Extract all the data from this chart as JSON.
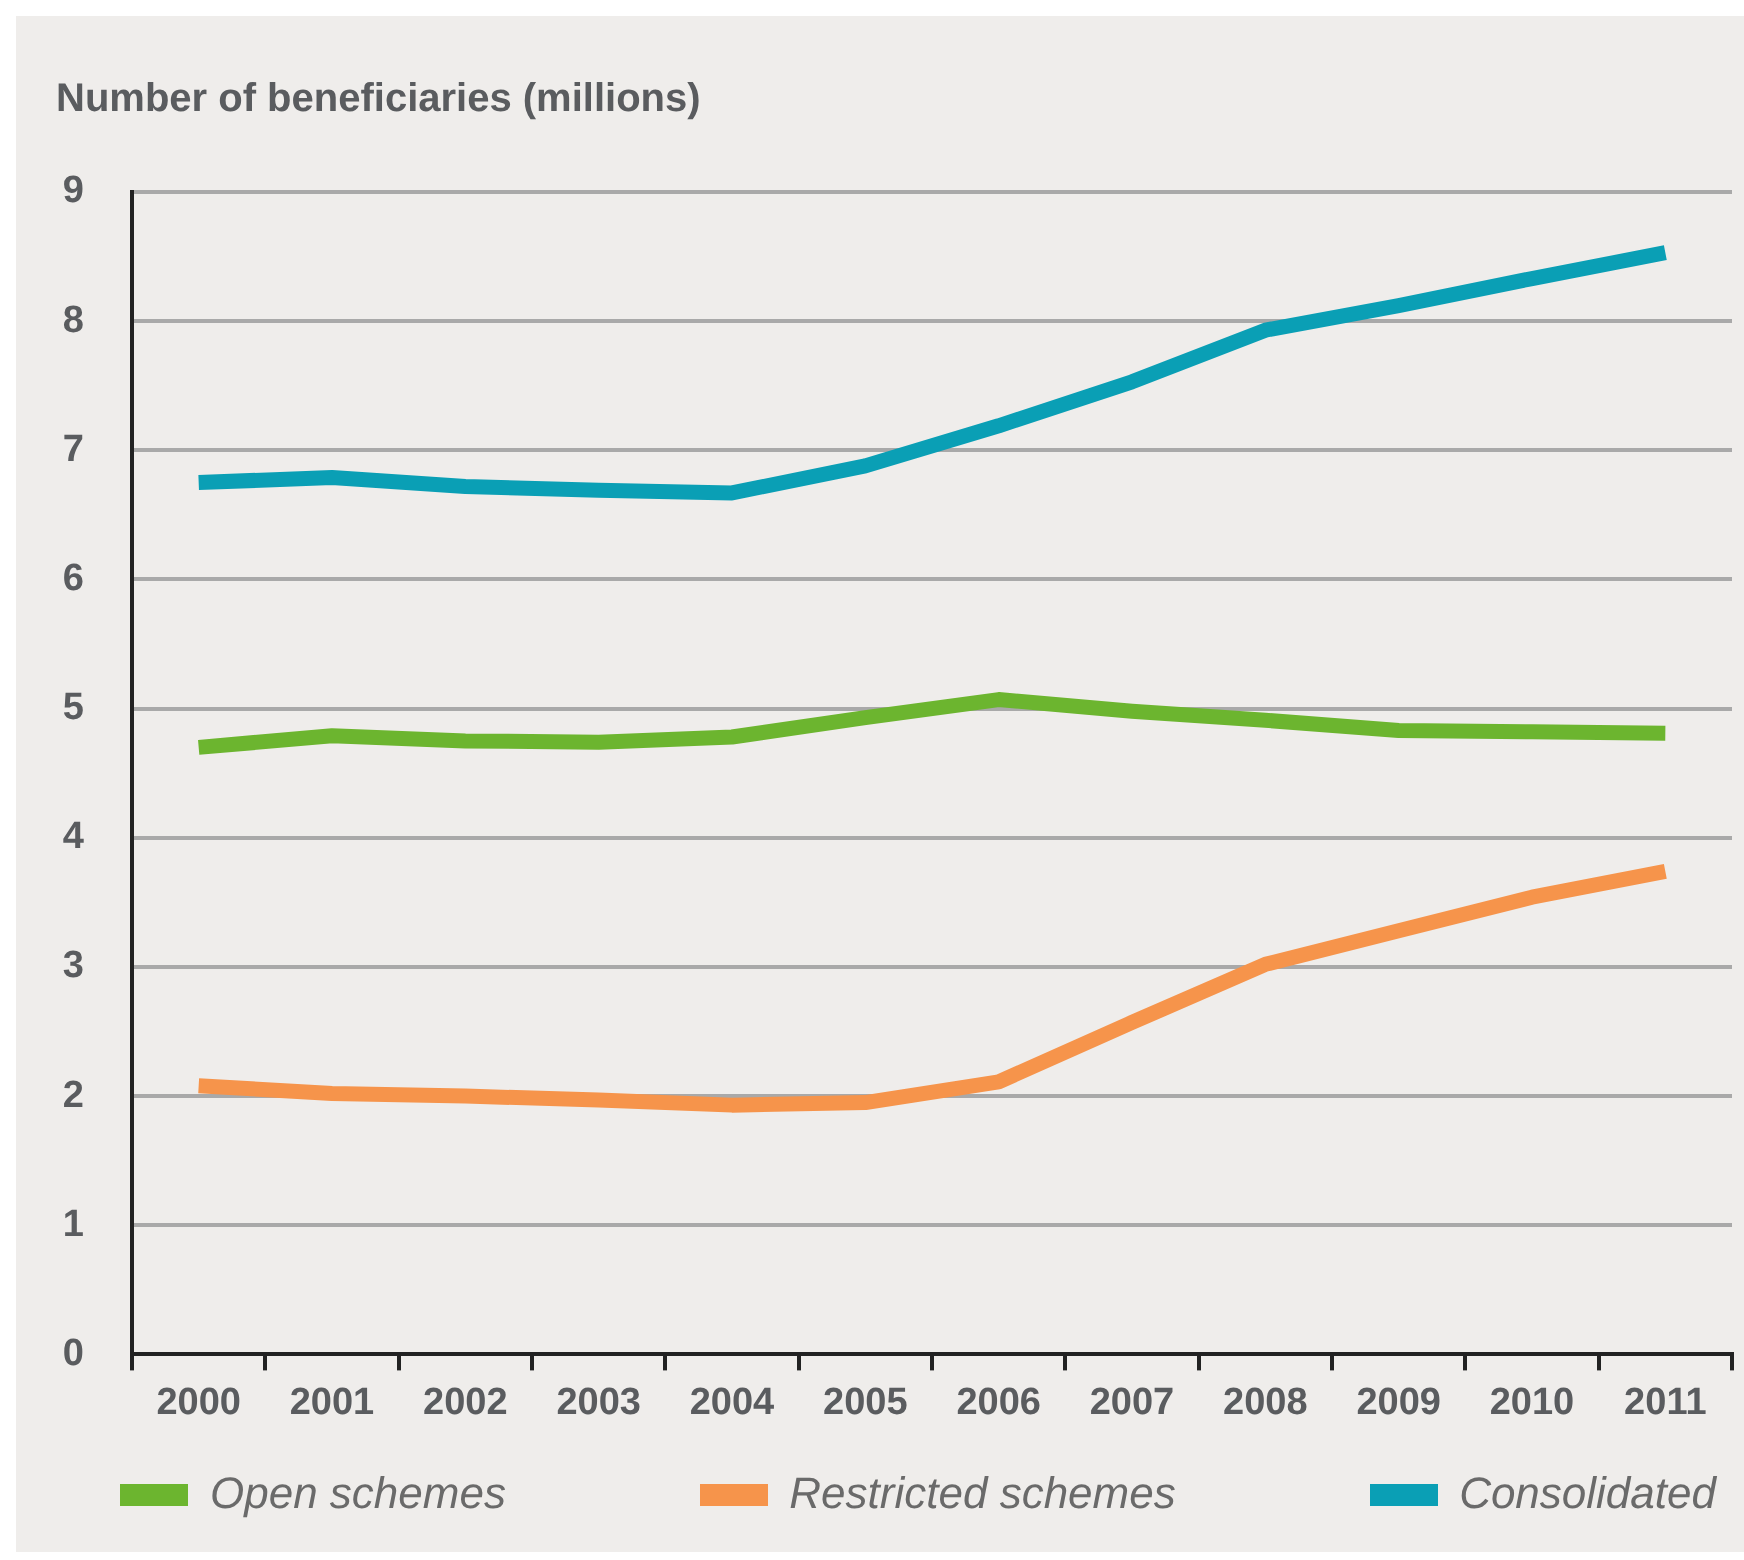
{
  "chart_data": {
    "type": "line",
    "title": "Number of beneficiaries (millions)",
    "categories": [
      "2000",
      "2001",
      "2002",
      "2003",
      "2004",
      "2005",
      "2006",
      "2007",
      "2008",
      "2009",
      "2010",
      "2011"
    ],
    "series": [
      {
        "name": "Open schemes",
        "color": "#6cb52f",
        "values": [
          4.7,
          4.79,
          4.75,
          4.74,
          4.78,
          4.93,
          5.07,
          4.98,
          4.91,
          4.83,
          4.82,
          4.81
        ]
      },
      {
        "name": "Restricted schemes",
        "color": "#f6944b",
        "values": [
          2.08,
          2.02,
          2.0,
          1.97,
          1.93,
          1.95,
          2.11,
          2.57,
          3.02,
          3.28,
          3.54,
          3.74
        ]
      },
      {
        "name": "Consolidated",
        "color": "#0a9fb5",
        "values": [
          6.75,
          6.79,
          6.72,
          6.69,
          6.67,
          6.88,
          7.19,
          7.53,
          7.93,
          8.12,
          8.33,
          8.53
        ]
      }
    ],
    "ylim": [
      0,
      9
    ],
    "yticks": [
      0,
      1,
      2,
      3,
      4,
      5,
      6,
      7,
      8,
      9
    ],
    "grid": "y",
    "legend": "bottom"
  }
}
